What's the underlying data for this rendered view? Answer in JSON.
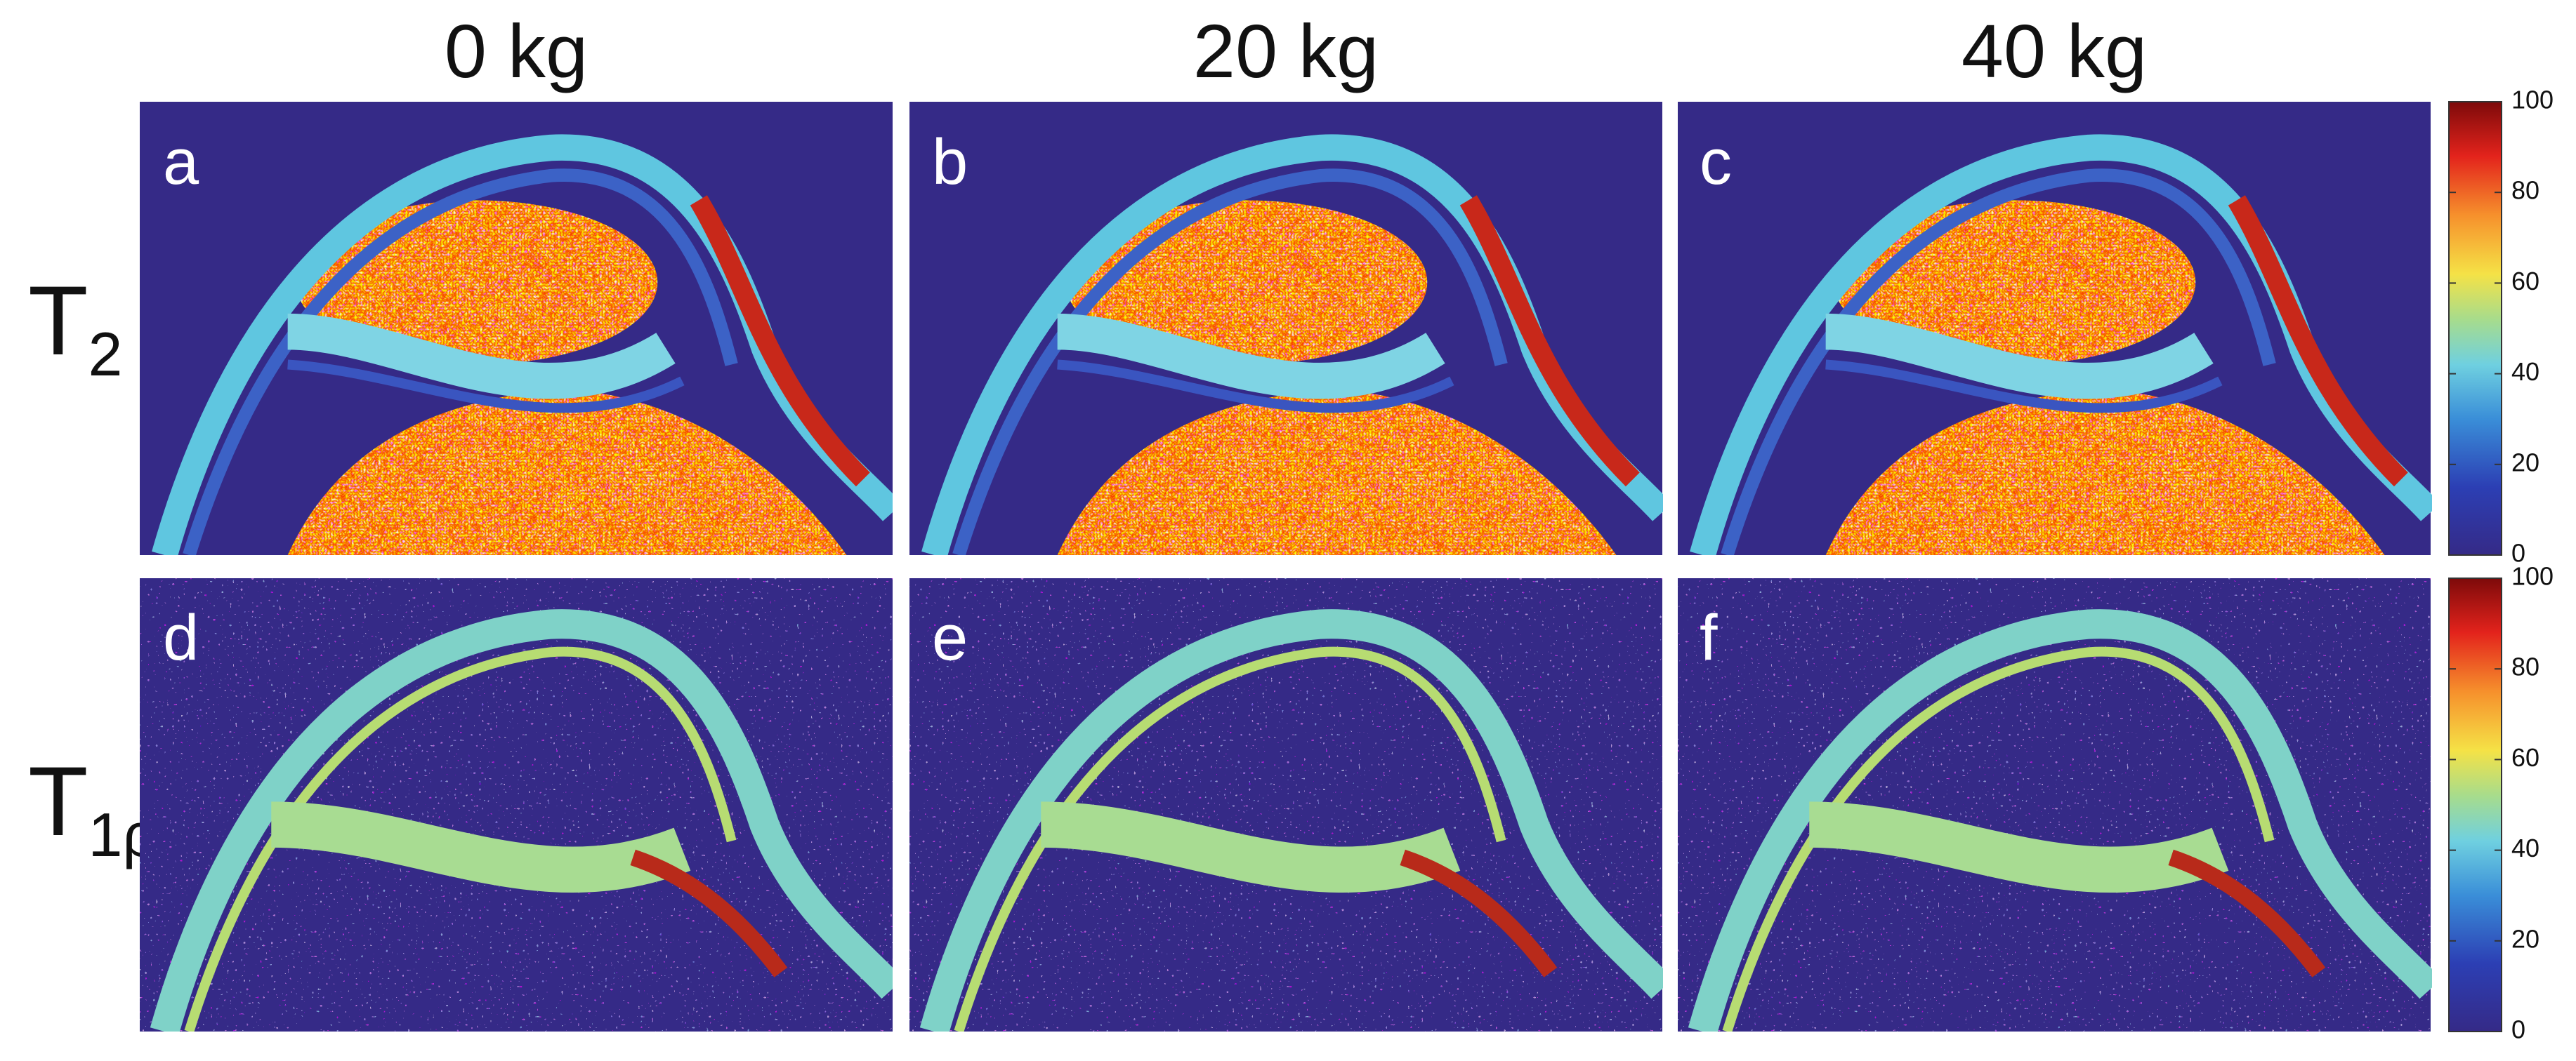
{
  "columns": [
    "0 kg",
    "20 kg",
    "40 kg"
  ],
  "rows": [
    {
      "label": "T",
      "subscript": "2"
    },
    {
      "label": "T",
      "subscript": "1ρ"
    }
  ],
  "panels": [
    "a",
    "b",
    "c",
    "d",
    "e",
    "f"
  ],
  "colorbars": [
    {
      "range": [
        0,
        100
      ],
      "ticks": [
        0,
        20,
        40,
        60,
        80,
        100
      ]
    },
    {
      "range": [
        0,
        100
      ],
      "ticks": [
        0,
        20,
        40,
        60,
        80,
        100
      ]
    }
  ]
}
